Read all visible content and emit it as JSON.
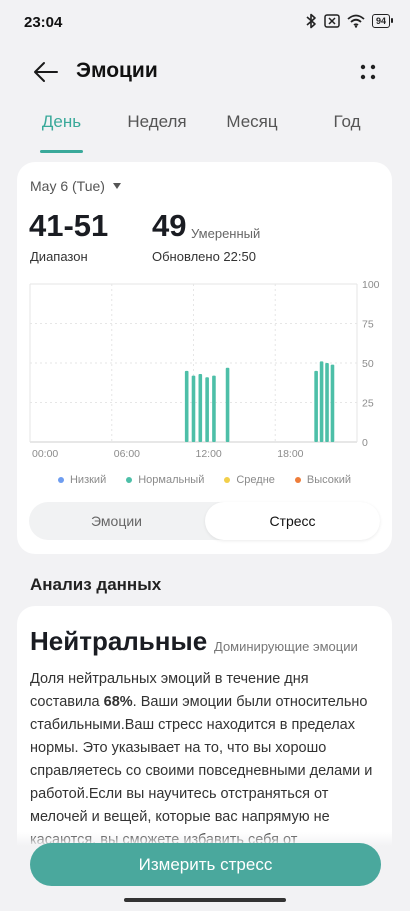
{
  "status": {
    "time": "23:04",
    "battery": "94",
    "icons": [
      "bluetooth-icon",
      "no-sim-icon",
      "wifi-icon",
      "battery-icon"
    ]
  },
  "header": {
    "title": "Эмоции",
    "back_icon": "arrow-left-icon",
    "more_icon": "more-dots-icon"
  },
  "tabs": [
    {
      "label": "День",
      "active": true
    },
    {
      "label": "Неделя",
      "active": false
    },
    {
      "label": "Месяц",
      "active": false
    },
    {
      "label": "Год",
      "active": false
    }
  ],
  "summary": {
    "date": "May 6 (Tue)",
    "range": "41-51",
    "range_label": "Диапазон",
    "value": "49",
    "level": "Умеренный",
    "updated": "Обновлено 22:50"
  },
  "chart_data": {
    "type": "bar",
    "x_ticks": [
      "00:00",
      "06:00",
      "12:00",
      "18:00"
    ],
    "y_ticks": [
      "100",
      "75",
      "50",
      "25",
      "0"
    ],
    "ylim": [
      0,
      100
    ],
    "xlim_hours": [
      0,
      24
    ],
    "grid": true,
    "points": [
      {
        "hour": 11.5,
        "value": 45
      },
      {
        "hour": 12.0,
        "value": 42
      },
      {
        "hour": 12.5,
        "value": 43
      },
      {
        "hour": 13.0,
        "value": 41
      },
      {
        "hour": 13.5,
        "value": 42
      },
      {
        "hour": 14.5,
        "value": 47
      },
      {
        "hour": 21.0,
        "value": 45
      },
      {
        "hour": 21.4,
        "value": 51
      },
      {
        "hour": 21.8,
        "value": 50
      },
      {
        "hour": 22.2,
        "value": 49
      }
    ],
    "bar_color": "#4dbfa8",
    "legend": [
      {
        "label": "Низкий",
        "color": "#6e9df0"
      },
      {
        "label": "Нормальный",
        "color": "#4dbfa8"
      },
      {
        "label": "Средне",
        "color": "#f2cf4a"
      },
      {
        "label": "Высокий",
        "color": "#ee7d3a"
      }
    ]
  },
  "segment": {
    "left": "Эмоции",
    "right": "Стресс",
    "selected": "right"
  },
  "analysis": {
    "section_title": "Анализ данных",
    "dominant": "Нейтральные",
    "dominant_label": "Доминирующие эмоции",
    "text_before": "Доля нейтральных эмоций в течение дня составила ",
    "percent": "68%",
    "text_after": ". Ваши эмоции были относительно стабильными.Ваш стресс находится в пределах нормы. Это указывает на то, что вы хорошо справляетесь со своими повседневными делами и работой.Если вы научитесь отстраняться от мелочей и вещей, которые вас напрямую не касаются, вы сможете избавить себя от"
  },
  "footer": {
    "button_label": "Измерить стресс"
  },
  "colors": {
    "accent": "#3aa99a",
    "button": "#4aa89d"
  }
}
